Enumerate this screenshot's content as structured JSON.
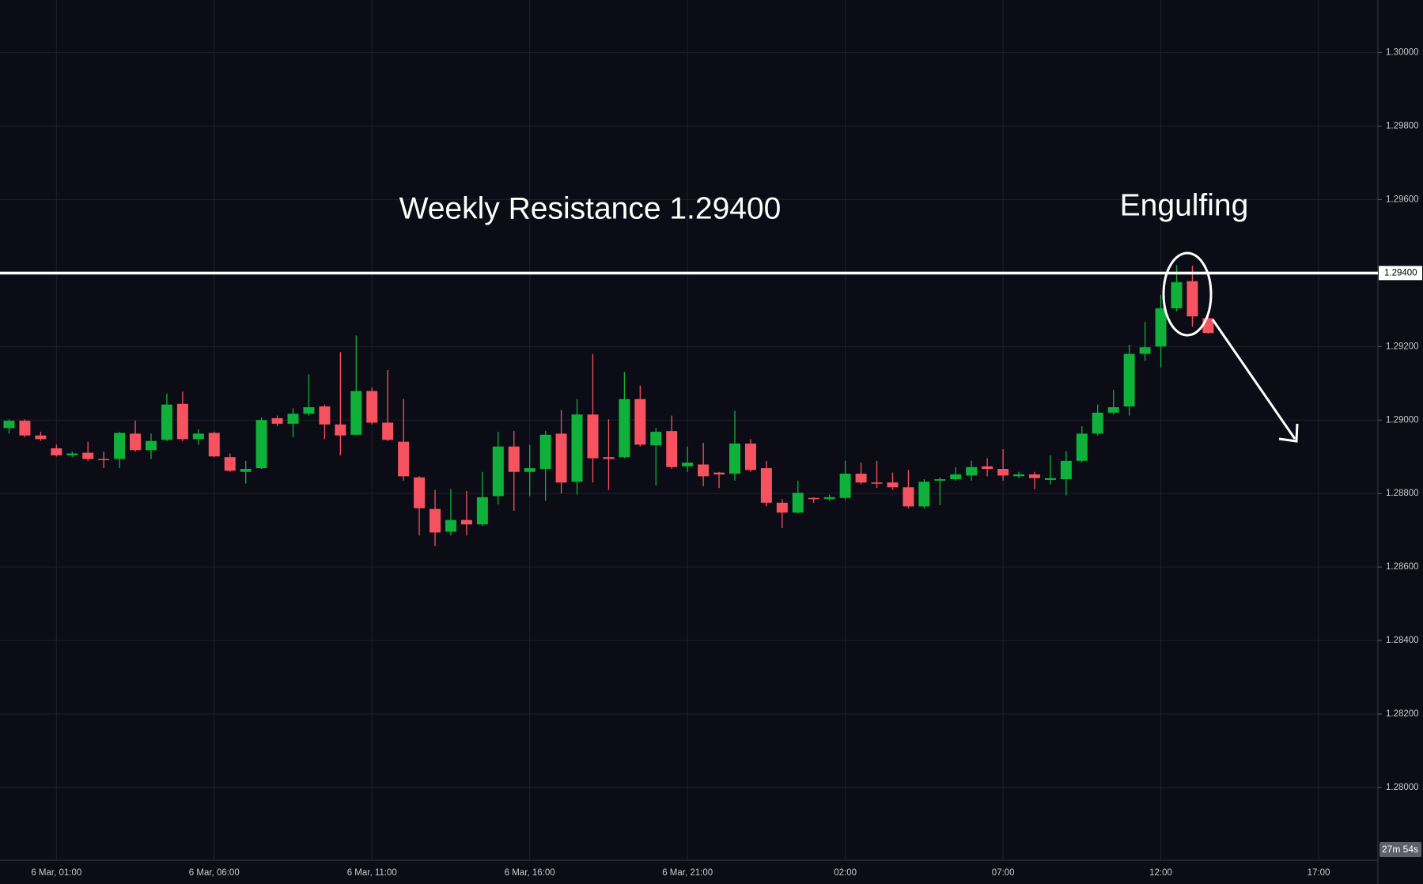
{
  "chart_data": {
    "type": "candlestick",
    "annotations": [
      "Weekly Resistance 1.29400",
      "Engulfing"
    ],
    "timer": "27m 54s",
    "up_color": "#0fb13a",
    "down_color": "#f7525f",
    "grid": true,
    "resistance": {
      "value": 1.294,
      "label": "1.29400"
    },
    "categories": [
      null,
      null,
      null,
      "6 Mar, 01:00",
      null,
      null,
      null,
      null,
      null,
      null,
      null,
      null,
      null,
      "6 Mar, 06:00",
      null,
      null,
      null,
      null,
      null,
      null,
      null,
      null,
      null,
      "6 Mar, 11:00",
      null,
      null,
      null,
      null,
      null,
      null,
      null,
      null,
      null,
      "6 Mar, 16:00",
      null,
      null,
      null,
      null,
      null,
      null,
      null,
      null,
      null,
      "6 Mar, 21:00",
      null,
      null,
      null,
      null,
      null,
      null,
      null,
      null,
      null,
      "02:00",
      null,
      null,
      null,
      null,
      null,
      null,
      null,
      null,
      null,
      "07:00",
      null,
      null,
      null,
      null,
      null,
      null,
      null,
      null,
      null,
      "12:00",
      null,
      null,
      null,
      null,
      null,
      null,
      null,
      null,
      null,
      "17:00"
    ],
    "open": [
      1.28978,
      1.28998,
      1.28958,
      1.28923,
      1.28904,
      1.28911,
      1.28894,
      1.28894,
      1.28963,
      1.28918,
      1.28946,
      1.29044,
      1.28948,
      1.28965,
      1.28899,
      1.28859,
      1.28869,
      1.29005,
      1.2899,
      1.29017,
      1.29037,
      1.28988,
      1.2896,
      1.29079,
      1.28993,
      1.28941,
      1.28844,
      1.28758,
      1.28696,
      1.28728,
      1.28716,
      1.28793,
      1.28928,
      1.28859,
      1.28867,
      1.28963,
      1.28832,
      1.29015,
      1.28899,
      1.28899,
      1.29057,
      1.28931,
      1.2897,
      1.28874,
      1.28879,
      1.28857,
      1.28854,
      1.28936,
      1.28869,
      1.28775,
      1.28748,
      1.28788,
      1.28785,
      1.28788,
      1.28854,
      1.2883,
      1.2883,
      1.28817,
      1.28765,
      1.28835,
      1.28839,
      1.28849,
      1.28874,
      1.28867,
      1.28847,
      1.28852,
      1.28837,
      1.28839,
      1.28889,
      1.28963,
      1.2902,
      1.29037,
      1.2918,
      1.292,
      1.29304,
      1.29378,
      1.29277,
      null,
      null,
      null,
      null,
      null,
      null,
      null
    ],
    "high": [
      1.29002,
      1.29002,
      1.28968,
      1.28933,
      1.28914,
      1.28941,
      1.28914,
      1.28968,
      1.28998,
      1.28963,
      1.29072,
      1.29077,
      1.28975,
      1.28968,
      1.28909,
      1.28889,
      1.29007,
      1.29012,
      1.29032,
      1.29124,
      1.29042,
      1.29185,
      1.2923,
      1.29089,
      1.29136,
      1.29057,
      1.28847,
      1.2881,
      1.28812,
      1.28807,
      1.28859,
      1.28968,
      1.2897,
      1.28933,
      1.2897,
      1.29027,
      1.29057,
      1.2918,
      1.29002,
      1.29131,
      1.29094,
      1.28978,
      1.29012,
      1.28928,
      1.28938,
      1.28859,
      1.29025,
      1.28948,
      1.28889,
      1.28785,
      1.28835,
      1.2879,
      1.28797,
      1.28889,
      1.28884,
      1.28889,
      1.28857,
      1.28864,
      1.28839,
      1.28844,
      1.28872,
      1.28889,
      1.28896,
      1.28921,
      1.28859,
      1.28859,
      1.28904,
      1.28916,
      1.28983,
      1.29042,
      1.29082,
      1.29205,
      1.29267,
      1.29341,
      1.29422,
      1.2942,
      1.29284,
      null,
      null,
      null,
      null,
      null,
      null,
      null
    ],
    "low": [
      1.28963,
      1.28953,
      1.28943,
      1.28901,
      1.28899,
      1.28889,
      1.28869,
      1.28869,
      1.28914,
      1.28894,
      1.28943,
      1.28943,
      1.28933,
      1.28899,
      1.28859,
      1.28827,
      1.28867,
      1.28983,
      1.28953,
      1.29012,
      1.28948,
      1.28904,
      1.28958,
      1.28988,
      1.28943,
      1.28835,
      1.28686,
      1.28657,
      1.28686,
      1.28686,
      1.28711,
      1.2877,
      1.28753,
      1.28793,
      1.2878,
      1.288,
      1.28797,
      1.2883,
      1.2881,
      1.28896,
      1.28928,
      1.28822,
      1.28867,
      1.28859,
      1.2882,
      1.28815,
      1.28835,
      1.28859,
      1.28765,
      1.28706,
      1.28746,
      1.28775,
      1.2878,
      1.28783,
      1.28825,
      1.28815,
      1.2881,
      1.2876,
      1.2876,
      1.28768,
      1.28835,
      1.28835,
      1.28847,
      1.28835,
      1.28842,
      1.28812,
      1.28825,
      1.28795,
      1.28884,
      1.28958,
      1.29015,
      1.29012,
      1.29161,
      1.29143,
      1.29296,
      1.29254,
      1.29235,
      null,
      null,
      null,
      null,
      null,
      null,
      null
    ],
    "close": [
      1.28998,
      1.28958,
      1.28948,
      1.28904,
      1.28909,
      1.28894,
      1.28891,
      1.28965,
      1.28918,
      1.28943,
      1.29042,
      1.28948,
      1.28963,
      1.28901,
      1.28862,
      1.28867,
      1.29,
      1.2899,
      1.29017,
      1.29035,
      1.28988,
      1.28958,
      1.29079,
      1.28993,
      1.28946,
      1.28847,
      1.2876,
      1.28694,
      1.28728,
      1.28716,
      1.2879,
      1.28928,
      1.28859,
      1.28869,
      1.2896,
      1.2883,
      1.29015,
      1.28896,
      1.28894,
      1.29057,
      1.28933,
      1.28968,
      1.28872,
      1.28884,
      1.28847,
      1.28852,
      1.28936,
      1.28864,
      1.28775,
      1.28748,
      1.28802,
      1.28785,
      1.2879,
      1.28854,
      1.2883,
      1.28827,
      1.28817,
      1.28765,
      1.28832,
      1.28839,
      1.28852,
      1.28872,
      1.28867,
      1.28849,
      1.28852,
      1.28842,
      1.28842,
      1.28889,
      1.28963,
      1.2902,
      1.29035,
      1.2918,
      1.29198,
      1.29304,
      1.29375,
      1.29282,
      1.29237,
      null,
      null,
      null,
      null,
      null,
      null,
      null
    ],
    "ylim": [
      1.27802,
      1.30143
    ],
    "yticks": [
      {
        "value": 1.3,
        "label": "1.30000"
      },
      {
        "value": 1.298,
        "label": "1.29800"
      },
      {
        "value": 1.296,
        "label": "1.29600"
      },
      {
        "value": 1.292,
        "label": "1.29200"
      },
      {
        "value": 1.29,
        "label": "1.29000"
      },
      {
        "value": 1.288,
        "label": "1.28800"
      },
      {
        "value": 1.286,
        "label": "1.28600"
      },
      {
        "value": 1.284,
        "label": "1.28400"
      },
      {
        "value": 1.282,
        "label": "1.28200"
      },
      {
        "value": 1.28,
        "label": "1.28000"
      }
    ]
  }
}
